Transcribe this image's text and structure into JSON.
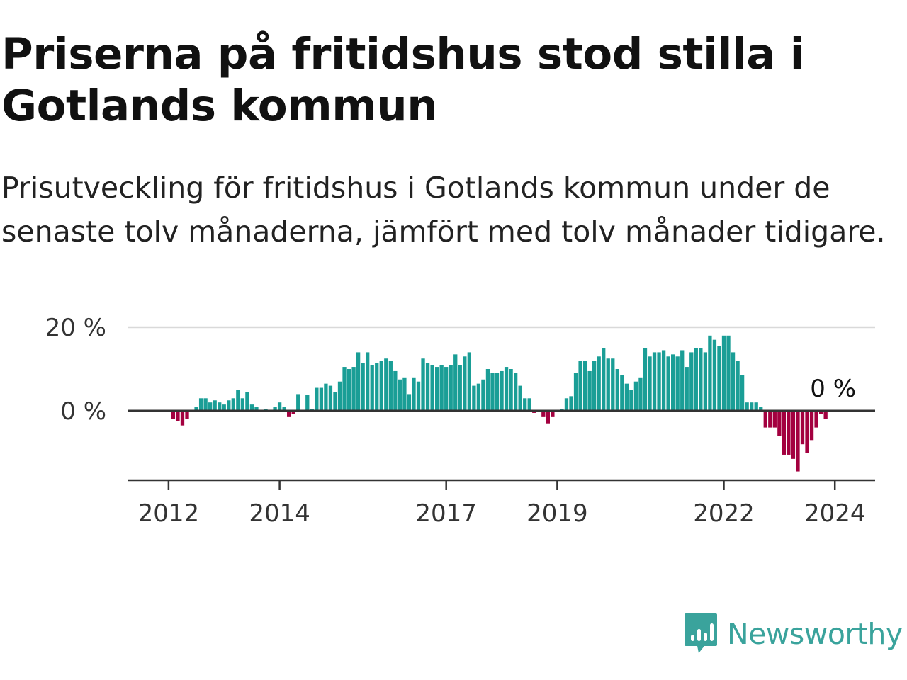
{
  "title": "Priserna på fritidshus stod stilla i Gotlands kommun",
  "subtitle": "Prisutveckling för fritidshus i Gotlands kommun under de senaste tolv månaderna, jämfört med tolv månader tidigare.",
  "brand": {
    "name": "Newsworthy"
  },
  "colors": {
    "positive": "#1a9e96",
    "negative": "#a3003f",
    "grid": "#d9d9d9",
    "axis": "#333333",
    "brand": "#3aa39c"
  },
  "chart_data": {
    "type": "bar",
    "x_start": "2011-05",
    "x_step": "month",
    "ylim": [
      -16,
      20
    ],
    "yticks": [
      {
        "value": 20,
        "label": "20 %"
      },
      {
        "value": 0,
        "label": "0 %"
      }
    ],
    "xticks": [
      {
        "x": "2012-01",
        "label": "2012"
      },
      {
        "x": "2014-01",
        "label": "2014"
      },
      {
        "x": "2017-01",
        "label": "2017"
      },
      {
        "x": "2019-01",
        "label": "2019"
      },
      {
        "x": "2022-01",
        "label": "2022"
      },
      {
        "x": "2024-01",
        "label": "2024"
      }
    ],
    "end_label": "0 %",
    "grid": true,
    "values": [
      0,
      0,
      0,
      0,
      0,
      0,
      0,
      0,
      -0.3,
      -2,
      -2.5,
      -3.5,
      -2,
      0,
      1,
      3,
      3,
      2,
      2.5,
      2,
      1.5,
      2.5,
      3,
      5,
      3,
      4.5,
      1.5,
      1,
      0,
      0.5,
      0,
      1,
      2,
      1,
      -1.5,
      -0.8,
      4,
      0,
      3.8,
      0.5,
      5.5,
      5.5,
      6.5,
      6,
      4.5,
      7,
      10.5,
      10,
      10.5,
      14,
      11.5,
      14,
      11,
      11.5,
      12,
      12.5,
      12,
      9.5,
      7.5,
      8,
      4,
      8,
      7,
      12.5,
      11.5,
      11,
      10.5,
      11,
      10.5,
      11,
      13.5,
      11,
      13,
      14,
      6,
      6.5,
      7.5,
      10,
      9,
      9,
      9.5,
      10.5,
      10,
      9,
      6,
      3,
      3,
      -0.5,
      0,
      -1.5,
      -3,
      -1.5,
      0,
      0.5,
      3,
      3.5,
      9,
      12,
      12,
      9.5,
      12,
      13,
      15,
      12.5,
      12.5,
      10,
      8.5,
      6.5,
      5,
      7,
      8,
      15,
      13,
      14,
      14,
      14.5,
      13,
      13.5,
      13,
      14.5,
      10.5,
      14,
      15,
      15,
      14,
      18,
      17,
      15.5,
      18,
      18,
      14,
      12,
      8.5,
      2,
      2,
      2,
      1,
      -4,
      -4,
      -4,
      -6,
      -10.5,
      -10.5,
      -11.5,
      -14.5,
      -8,
      -10,
      -7,
      -4,
      -0.8,
      -2,
      0
    ]
  }
}
